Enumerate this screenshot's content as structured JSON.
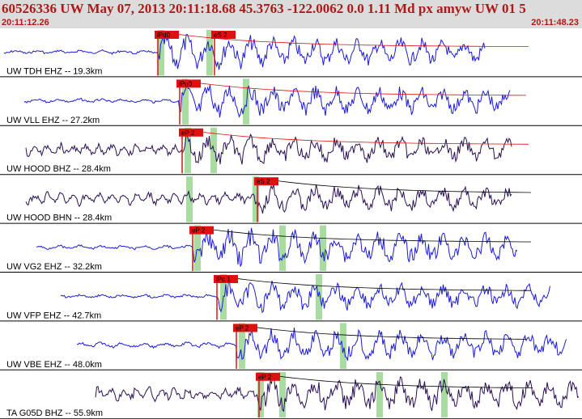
{
  "header": {
    "title": "60526336 UW May 07, 2013 20:11:18.68    45.3763 -122.0062  0.0 1.11 Md px amyw UW 01    5",
    "start_time": "20:11:12.26",
    "end_time": "20:11:48.23"
  },
  "colors": {
    "blue_trace": "#1c1cd2",
    "purple_trace": "#2a0f55",
    "pick": "#e01010",
    "window": "#a8dca0",
    "divider": "#000000"
  },
  "traces": [
    {
      "label": "UW TDH EHZ -- 19.3km",
      "pick": "iPd0",
      "pick2": "eS 2",
      "type": "blue"
    },
    {
      "label": "UW VLL EHZ -- 27.2km",
      "pick": "iPu0",
      "pick2": "",
      "type": "blue"
    },
    {
      "label": "UW HOOD BHZ -- 28.4km",
      "pick": "eP 2",
      "pick2": "",
      "type": "purple"
    },
    {
      "label": "UW HOOD BHN -- 28.4km",
      "pick": "",
      "pick2": "eS 2",
      "type": "purple"
    },
    {
      "label": "UW VG2 EHZ -- 32.2km",
      "pick": "eP 2",
      "pick2": "",
      "type": "blue"
    },
    {
      "label": "UW VFP EHZ -- 42.7km",
      "pick": "iPc 1",
      "pick2": "",
      "type": "blue"
    },
    {
      "label": "UW VBE EHZ -- 48.0km",
      "pick": "eP 2",
      "pick2": "",
      "type": "blue"
    },
    {
      "label": "TA G05D BHZ -- 55.9km",
      "pick": "eP 2",
      "pick2": "",
      "type": "purple"
    }
  ]
}
